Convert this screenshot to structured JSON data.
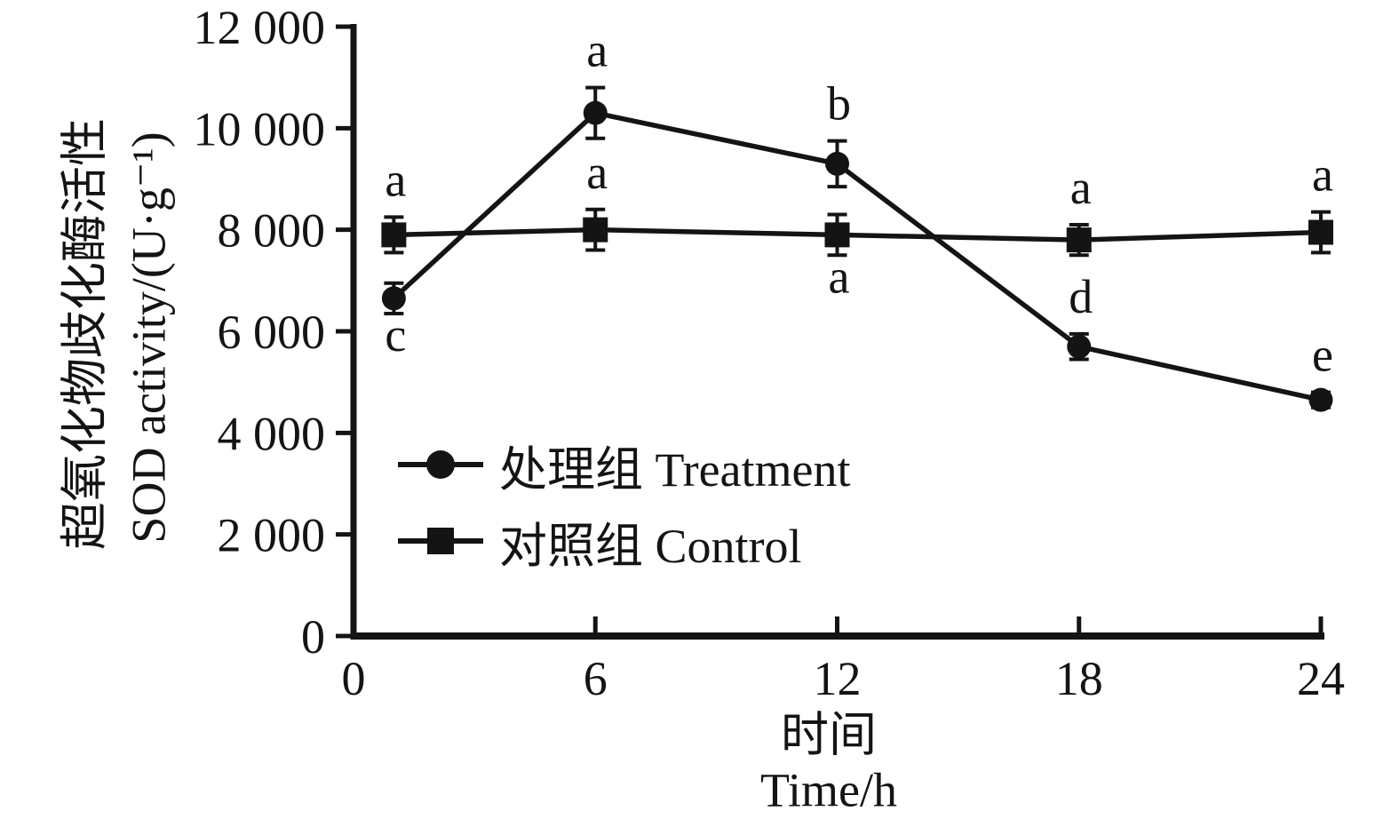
{
  "chart_data": {
    "type": "line",
    "title": "",
    "x": [
      1,
      6,
      12,
      18,
      24
    ],
    "xlim": [
      0,
      24
    ],
    "ylim": [
      0,
      12000
    ],
    "grid": false,
    "legend_position": "inside-lower-left",
    "x_ticks": [
      {
        "v": 0,
        "label": "0"
      },
      {
        "v": 6,
        "label": "6"
      },
      {
        "v": 12,
        "label": "12"
      },
      {
        "v": 18,
        "label": "18"
      },
      {
        "v": 24,
        "label": "24"
      }
    ],
    "y_ticks": [
      {
        "v": 0,
        "label": "0"
      },
      {
        "v": 2000,
        "label": "2 000"
      },
      {
        "v": 4000,
        "label": "4 000"
      },
      {
        "v": 6000,
        "label": "6 000"
      },
      {
        "v": 8000,
        "label": "8 000"
      },
      {
        "v": 10000,
        "label": "10 000"
      },
      {
        "v": 12000,
        "label": "12 000"
      }
    ],
    "xlabel_zh": "时间",
    "xlabel_en": "Time/h",
    "ylabel_zh": "超氧化物歧化酶活性",
    "ylabel_en": "SOD activity/(U·g⁻¹)",
    "series": [
      {
        "name": "处理组 Treatment",
        "marker": "circle",
        "values": [
          6650,
          10300,
          9300,
          5700,
          4650
        ],
        "errors": [
          300,
          500,
          450,
          250,
          150
        ],
        "letters": [
          "c",
          "a",
          "b",
          "d",
          "e"
        ],
        "letter_pos": [
          "below",
          "above",
          "above",
          "above",
          "above"
        ]
      },
      {
        "name": "对照组 Control",
        "marker": "square",
        "values": [
          7900,
          8000,
          7900,
          7800,
          7950
        ],
        "errors": [
          350,
          400,
          400,
          300,
          400
        ],
        "letters": [
          "a",
          "a",
          "a",
          "a",
          "a"
        ],
        "letter_pos": [
          "above",
          "above",
          "below",
          "above",
          "above"
        ]
      }
    ],
    "color": "#141414",
    "background": "#ffffff"
  }
}
